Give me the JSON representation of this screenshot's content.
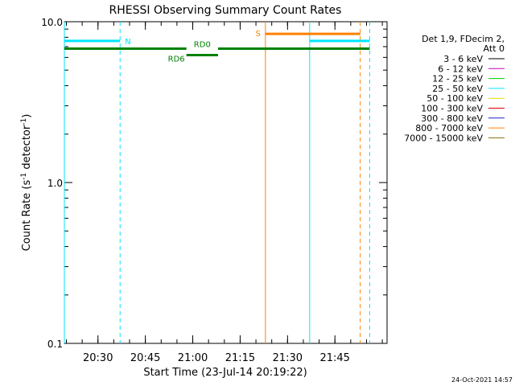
{
  "chart_data": {
    "type": "line",
    "title": "RHESSI Observing Summary Count Rates",
    "xlabel": "Start Time (23-Jul-14 20:19:22)",
    "ylabel_parts": {
      "base": "Count Rate (s",
      "exp1": "-1",
      "mid": " detector",
      "exp2": "-1",
      "end": ")"
    },
    "y_log": true,
    "ylim": [
      0.1,
      10.0
    ],
    "xlim": [
      "20:19:22",
      "22:01:30"
    ],
    "x_ticks": [
      "20:30",
      "20:45",
      "21:00",
      "21:15",
      "21:30",
      "21:45"
    ],
    "y_ticks": [
      "0.1",
      "1.0",
      "10.0"
    ],
    "legend": {
      "placement": "right",
      "header": [
        "Det 1,9, FDecim 2,",
        "Att 0"
      ],
      "entries": [
        {
          "label": "3 - 6 keV",
          "color": "#000000"
        },
        {
          "label": "6 - 12 keV",
          "color": "#cc00cc"
        },
        {
          "label": "12 - 25 keV",
          "color": "#00cc00"
        },
        {
          "label": "25 - 50 keV",
          "color": "#00e5ff"
        },
        {
          "label": "50 - 100 keV",
          "color": "#e5d800"
        },
        {
          "label": "100 - 300 keV",
          "color": "#e00000"
        },
        {
          "label": "300 - 800 keV",
          "color": "#2020c0"
        },
        {
          "label": "800 - 7000 keV",
          "color": "#ff8000"
        },
        {
          "label": "7000 - 15000 keV",
          "color": "#8a6a00"
        }
      ]
    },
    "flags": [
      {
        "name": "Night",
        "label": "N",
        "color": "#00e5ff",
        "y": 7.6,
        "intervals": [
          [
            "20:19:22",
            "20:37:00"
          ],
          [
            "21:37:00",
            "21:56:00"
          ]
        ]
      },
      {
        "name": "SAA",
        "label": "S",
        "color": "#ff8000",
        "y": 8.4,
        "intervals": [
          [
            "21:23:00",
            "21:53:00"
          ]
        ]
      },
      {
        "name": "RD0",
        "label": "RD0",
        "color": "#008000",
        "y": 6.8,
        "intervals": [
          [
            "20:19:22",
            "20:58:00"
          ],
          [
            "21:08:00",
            "21:56:00"
          ]
        ]
      },
      {
        "name": "RD6",
        "label": "RD6",
        "color": "#008000",
        "y": 6.2,
        "intervals": [
          [
            "20:58:00",
            "21:08:00"
          ]
        ]
      }
    ],
    "markers": [
      {
        "time": "20:19:22",
        "color": "#00e5ff",
        "style": "solid"
      },
      {
        "time": "20:37:00",
        "color": "#00e5ff",
        "style": "dashed"
      },
      {
        "time": "21:23:00",
        "color": "#ff8000",
        "style": "solid"
      },
      {
        "time": "21:37:00",
        "color": "#00e5ff",
        "style": "solid"
      },
      {
        "time": "21:53:00",
        "color": "#ff8000",
        "style": "dashed"
      },
      {
        "time": "21:56:00",
        "color": "#00e5ff",
        "style": "dashed"
      }
    ],
    "footer_timestamp": "24-Oct-2021 14:57"
  }
}
